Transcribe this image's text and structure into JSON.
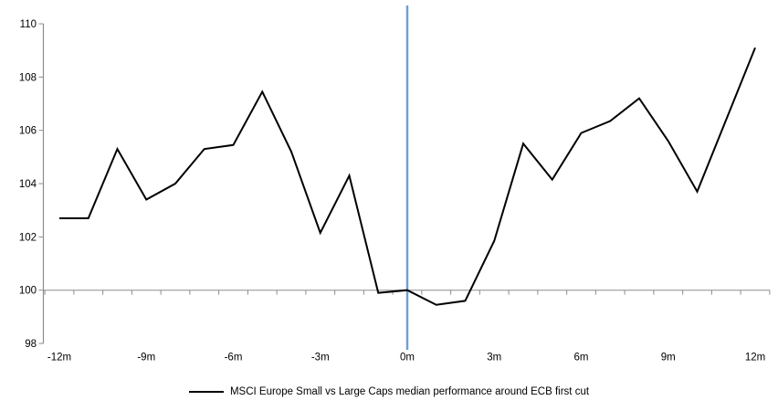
{
  "chart_data": {
    "type": "line",
    "title": "",
    "categories": [
      "-12m",
      "-11m",
      "-10m",
      "-9m",
      "-8m",
      "-7m",
      "-6m",
      "-5m",
      "-4m",
      "-3m",
      "-2m",
      "-1m",
      "0m",
      "1m",
      "2m",
      "3m",
      "4m",
      "5m",
      "6m",
      "7m",
      "8m",
      "9m",
      "10m",
      "11m",
      "12m"
    ],
    "series": [
      {
        "name": "MSCI Europe Small vs Large Caps median performance around ECB first cut",
        "color": "#000000",
        "values": [
          102.7,
          102.7,
          105.3,
          103.4,
          104.0,
          105.3,
          105.45,
          107.45,
          105.2,
          102.15,
          104.3,
          99.9,
          100.0,
          99.45,
          99.6,
          101.85,
          105.5,
          104.15,
          105.9,
          106.35,
          107.2,
          105.6,
          103.7,
          106.4,
          109.1
        ]
      }
    ],
    "xtick_labels": [
      "-12m",
      "-9m",
      "-6m",
      "-3m",
      "0m",
      "3m",
      "6m",
      "9m",
      "12m"
    ],
    "xtick_step_months": 3,
    "ytick_labels": [
      "110",
      "108",
      "106",
      "104",
      "102",
      "100",
      "98"
    ],
    "yticks": [
      110,
      108,
      106,
      104,
      102,
      100,
      98
    ],
    "ylim": [
      98,
      110
    ],
    "x_axis_cross_value": 100,
    "event_line": {
      "at_category": "0m",
      "color": "#6BA1D4"
    },
    "legend_position": "bottom-center",
    "grid": "off",
    "axis_colors": {
      "y_axis": "#8C8C8C",
      "x_axis_line": "#ACACAC",
      "tick": "#8C8C8C"
    }
  },
  "legend": {
    "label": "MSCI Europe Small vs Large Caps median performance around ECB first cut"
  }
}
